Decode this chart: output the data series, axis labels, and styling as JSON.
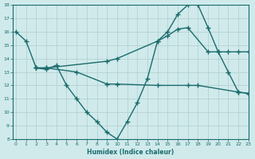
{
  "line1_x": [
    0,
    1,
    2,
    3,
    4,
    5,
    6,
    7,
    8,
    9,
    10,
    11,
    12,
    13,
    14,
    15,
    16,
    17,
    18,
    19,
    20,
    21,
    22,
    23
  ],
  "line1_y": [
    16,
    15.3,
    13.3,
    13.2,
    13.5,
    12.0,
    11.0,
    10.0,
    9.3,
    8.5,
    8.0,
    9.3,
    10.7,
    12.5,
    15.3,
    16.0,
    17.3,
    18.0,
    18.0,
    16.3,
    14.5,
    13.0,
    11.5,
    11.4
  ],
  "line2_x": [
    2,
    3,
    9,
    10,
    14,
    15,
    16,
    17,
    19,
    20,
    21,
    22,
    23
  ],
  "line2_y": [
    13.3,
    13.3,
    13.8,
    14.0,
    15.3,
    15.7,
    16.2,
    16.3,
    14.5,
    14.5,
    14.5,
    14.5,
    14.5
  ],
  "line3_x": [
    2,
    3,
    6,
    9,
    10,
    14,
    17,
    18,
    22,
    23
  ],
  "line3_y": [
    13.3,
    13.3,
    13.0,
    12.1,
    12.1,
    12.0,
    12.0,
    12.0,
    11.5,
    11.4
  ],
  "bg_color": "#d0eaec",
  "grid_color": "#b0cccc",
  "line_color": "#1a6b6b",
  "ylim": [
    8,
    18
  ],
  "xlim": [
    -0.3,
    23
  ],
  "yticks": [
    8,
    9,
    10,
    11,
    12,
    13,
    14,
    15,
    16,
    17,
    18
  ],
  "xticks": [
    0,
    1,
    2,
    3,
    4,
    5,
    6,
    7,
    8,
    9,
    10,
    11,
    12,
    13,
    14,
    15,
    16,
    17,
    18,
    19,
    20,
    21,
    22,
    23
  ],
  "xlabel": "Humidex (Indice chaleur)",
  "marker": "+",
  "markersize": 4,
  "linewidth": 1.0
}
